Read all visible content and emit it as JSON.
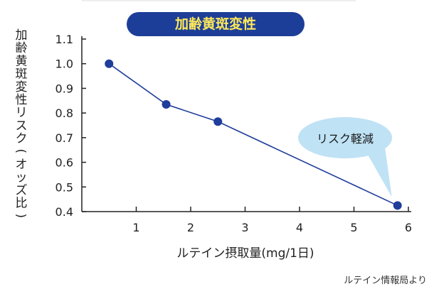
{
  "chart_data": {
    "type": "line",
    "title": "加齢黄斑変性",
    "ylabel": "加齢黄斑変性リスク(オッズ比)",
    "xlabel": "ルテイン摂取量(mg/1日)",
    "x_ticks": [
      "1",
      "2",
      "3",
      "4",
      "5",
      "6"
    ],
    "y_ticks": [
      "0.4",
      "0.5",
      "0.6",
      "0.7",
      "0.8",
      "0.9",
      "1.0",
      "1.1"
    ],
    "xlim": [
      0,
      6.2
    ],
    "ylim": [
      0.4,
      1.1
    ],
    "grid": false,
    "series": [
      {
        "x": [
          0.5,
          1.55,
          2.5,
          5.8
        ],
        "y": [
          1.0,
          0.835,
          0.765,
          0.425
        ]
      }
    ],
    "annotations": [
      {
        "text": "リスク軽減",
        "points_to_index": 3
      }
    ],
    "source": "ルテイン情報局より"
  },
  "colors": {
    "line": "#1f3d9a",
    "marker": "#1f3d9a",
    "title_bg": "#1d3e98",
    "title_text": "#ffe95a",
    "callout_fill": "#bfe2f5",
    "axis": "#222222"
  }
}
